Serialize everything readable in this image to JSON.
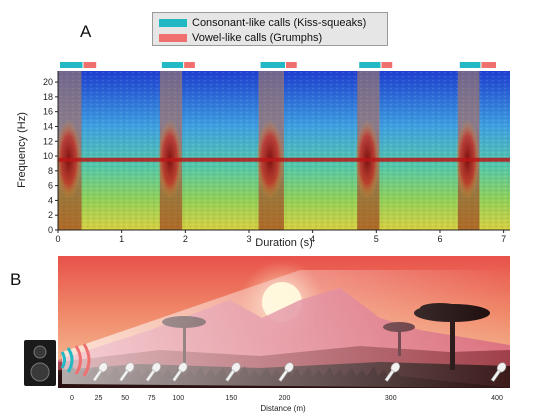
{
  "panels": {
    "a": "A",
    "b": "B"
  },
  "legend": [
    {
      "label": "Consonant-like calls (Kiss-squeaks)",
      "color": "#22b8c4"
    },
    {
      "label": "Vowel-like calls (Grumphs)",
      "color": "#f07070"
    }
  ],
  "spectrogram": {
    "ylabel": "Frequency (Hz)",
    "xlabel": "Duration (s)",
    "yticks": [
      "0",
      "2",
      "4",
      "6",
      "8",
      "10",
      "12",
      "14",
      "16",
      "18",
      "20"
    ],
    "xticks": [
      "0",
      "1",
      "2",
      "3",
      "4",
      "5",
      "6",
      "7"
    ],
    "calls": [
      {
        "start": 0.0,
        "kiss_end": 0.37,
        "grumph_end": 0.6
      },
      {
        "start": 1.6,
        "kiss_end": 1.95,
        "grumph_end": 2.15
      },
      {
        "start": 3.15,
        "kiss_end": 3.55,
        "grumph_end": 3.75
      },
      {
        "start": 4.7,
        "kiss_end": 5.05,
        "grumph_end": 5.25
      },
      {
        "start": 6.28,
        "kiss_end": 6.62,
        "grumph_end": 6.88
      }
    ],
    "tonal_band_hz": 9.5
  },
  "distance": {
    "xlabel": "Distance (m)",
    "ticks": [
      "0",
      "25",
      "50",
      "75",
      "100",
      "150",
      "200",
      "300",
      "400"
    ]
  },
  "colors": {
    "sky_top": "#e8524a",
    "sky_bottom": "#f7c7a0",
    "sun": "#fff6d0",
    "mountains": "#c85a72",
    "ground": "#3b1a1a"
  }
}
